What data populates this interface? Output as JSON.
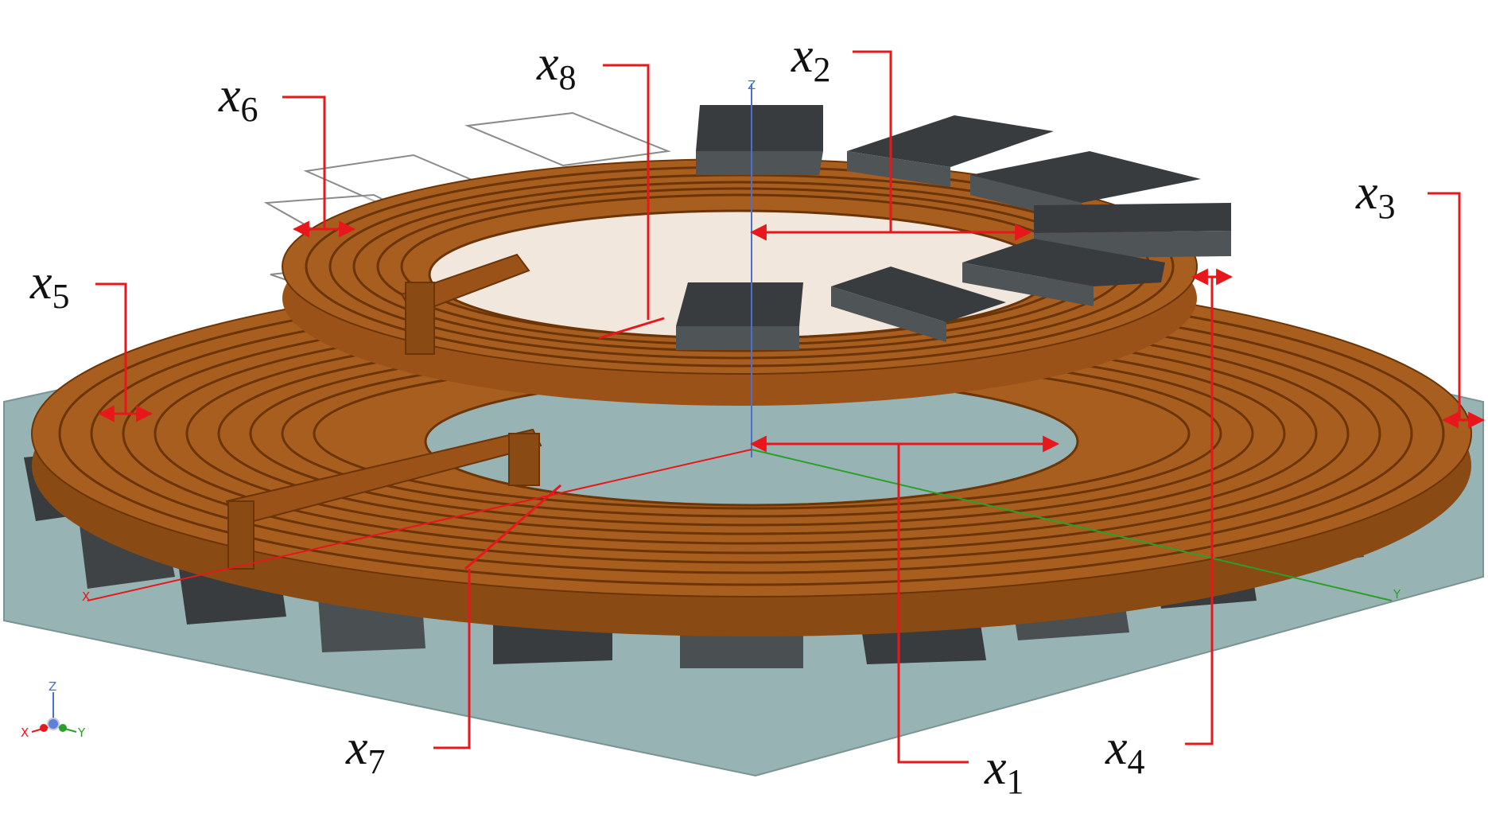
{
  "figure": {
    "description_labels": [
      {
        "id": "x1",
        "base": "x",
        "sub": "1"
      },
      {
        "id": "x2",
        "base": "x",
        "sub": "2"
      },
      {
        "id": "x3",
        "base": "x",
        "sub": "3"
      },
      {
        "id": "x4",
        "base": "x",
        "sub": "4"
      },
      {
        "id": "x5",
        "base": "x",
        "sub": "5"
      },
      {
        "id": "x6",
        "base": "x",
        "sub": "6"
      },
      {
        "id": "x7",
        "base": "x",
        "sub": "7"
      },
      {
        "id": "x8",
        "base": "x",
        "sub": "8"
      }
    ],
    "axes": {
      "x": "X",
      "y": "Y",
      "z": "Z"
    },
    "colors": {
      "copper": "#a85e1e",
      "copper_dark": "#7a3f10",
      "magnet": "#383c3e",
      "magnet_side": "#4f5456",
      "plate": "#98b3b3",
      "dimension": "#e8171b"
    }
  }
}
